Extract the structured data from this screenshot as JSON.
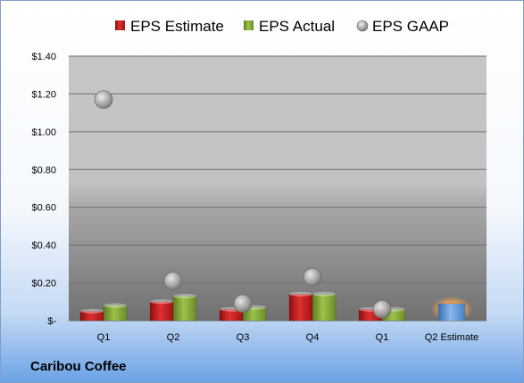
{
  "company_label": "Caribou Coffee",
  "chart_data": {
    "type": "bar",
    "categories": [
      "Q1",
      "Q2",
      "Q3",
      "Q4",
      "Q1",
      "Q2 Estimate"
    ],
    "ylim": [
      0,
      1.4
    ],
    "yticks": [
      "$-",
      "$0.20",
      "$0.40",
      "$0.60",
      "$0.80",
      "$1.00",
      "$1.20",
      "$1.40"
    ],
    "ytick_values": [
      0,
      0.2,
      0.4,
      0.6,
      0.8,
      1.0,
      1.2,
      1.4
    ],
    "legend_position": "top",
    "grid": true,
    "series": [
      {
        "name": "EPS Estimate",
        "kind": "bar",
        "color": "#d42020",
        "values": [
          0.05,
          0.1,
          0.06,
          0.14,
          0.06,
          null
        ]
      },
      {
        "name": "EPS Actual",
        "kind": "bar",
        "color": "#8cb43c",
        "values": [
          0.08,
          0.13,
          0.07,
          0.14,
          0.06,
          null
        ]
      },
      {
        "name": "EPS GAAP",
        "kind": "scatter",
        "color": "#a0a0a0",
        "values": [
          1.17,
          0.21,
          0.09,
          0.23,
          0.06,
          null
        ]
      }
    ],
    "estimate": {
      "category_index": 5,
      "value": 0.09,
      "color": "#5a8fd4",
      "glow": "#f0a050"
    }
  }
}
